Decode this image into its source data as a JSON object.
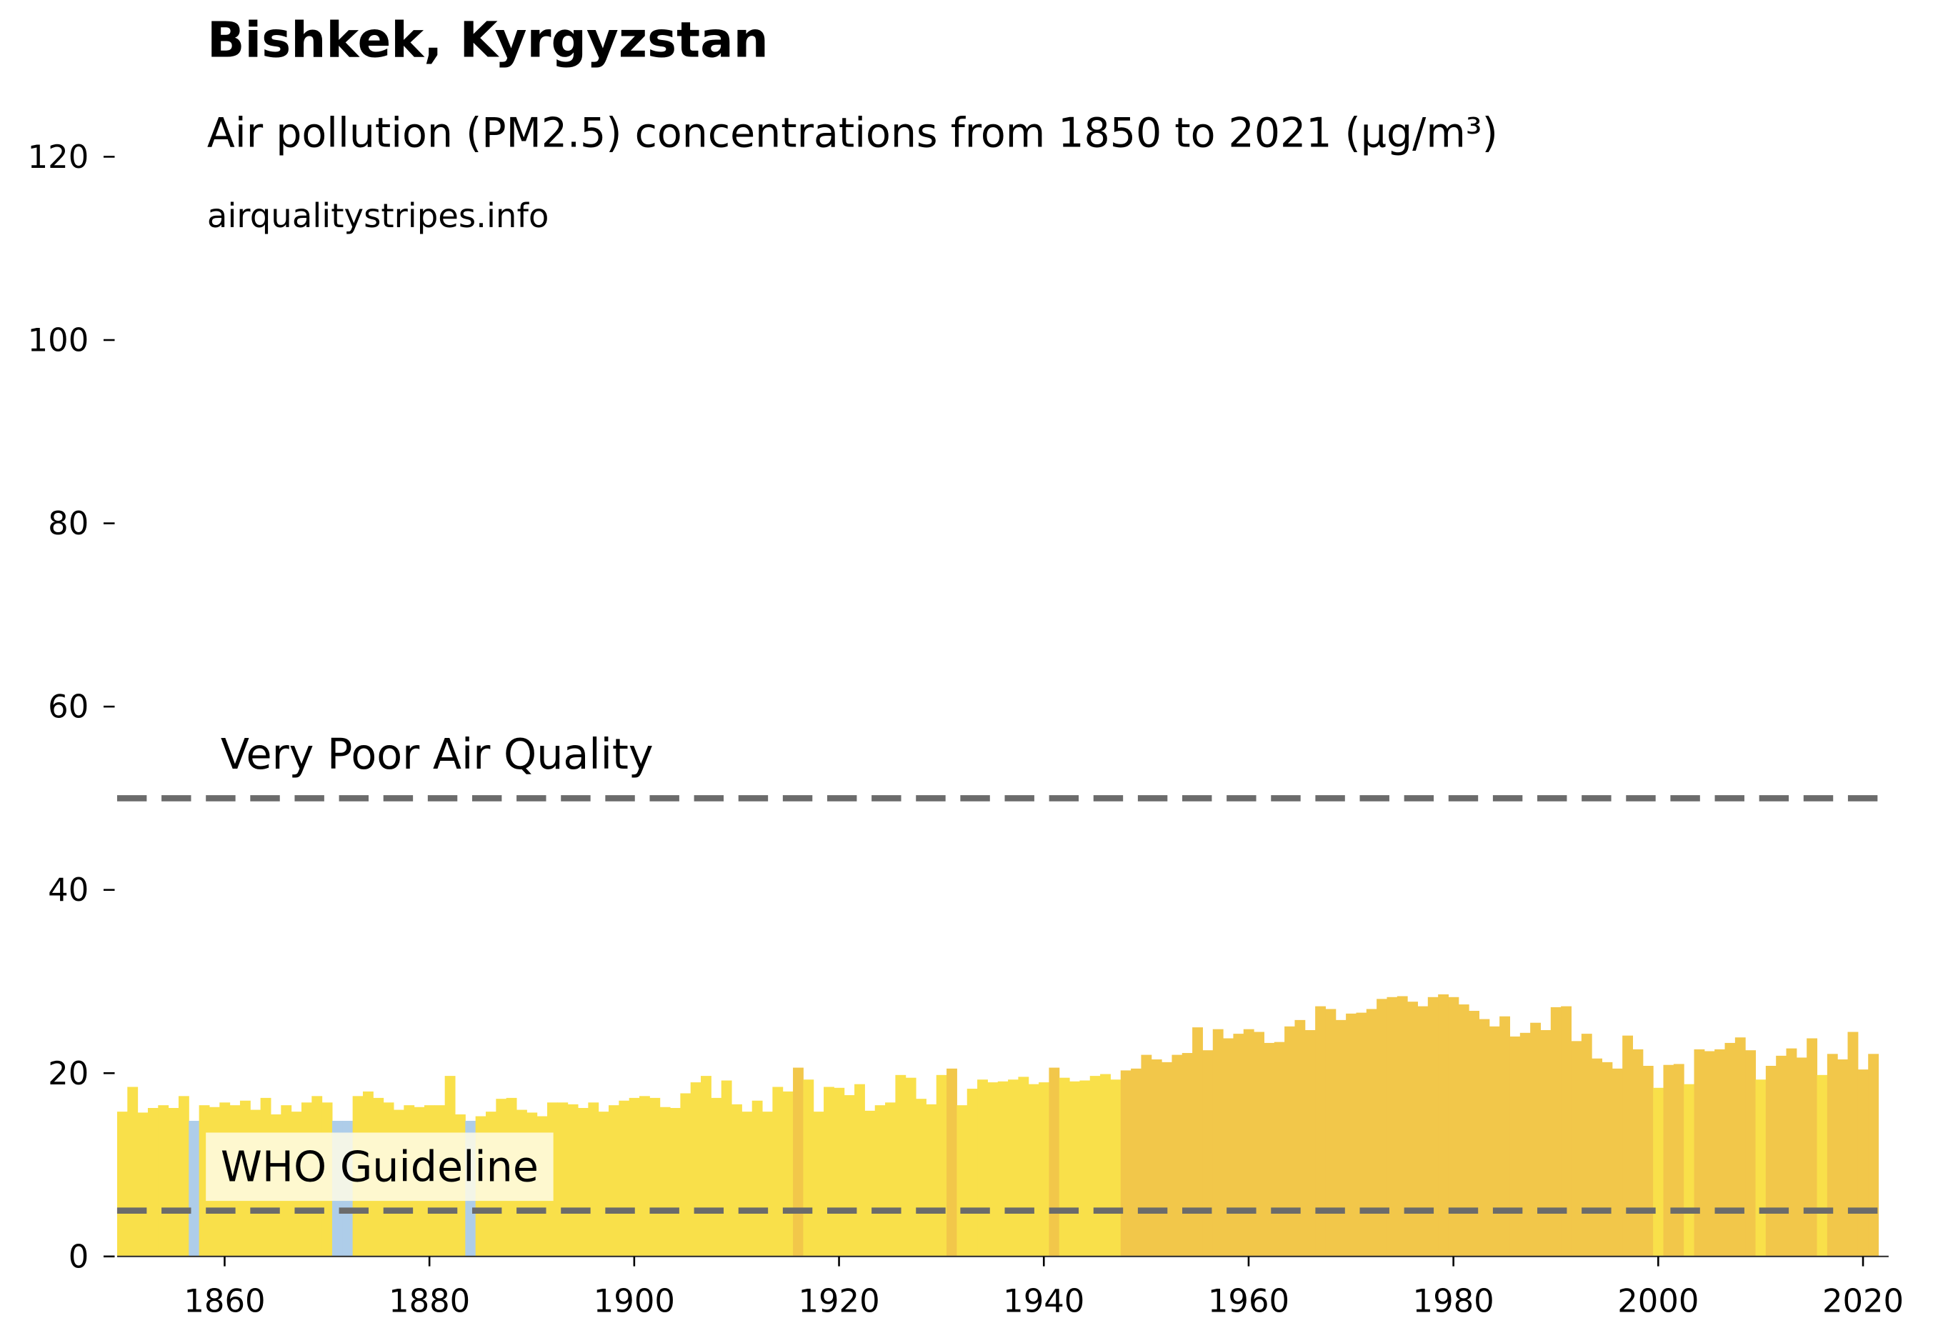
{
  "chart_data": {
    "type": "bar",
    "title": "Bishkek, Kyrgyzstan",
    "subtitle": "Air pollution (PM2.5) concentrations from 1850 to 2021 (µg/m³)",
    "source": "airqualitystripes.info",
    "x": [
      1850,
      1851,
      1852,
      1853,
      1854,
      1855,
      1856,
      1857,
      1858,
      1859,
      1860,
      1861,
      1862,
      1863,
      1864,
      1865,
      1866,
      1867,
      1868,
      1869,
      1870,
      1871,
      1872,
      1873,
      1874,
      1875,
      1876,
      1877,
      1878,
      1879,
      1880,
      1881,
      1882,
      1883,
      1884,
      1885,
      1886,
      1887,
      1888,
      1889,
      1890,
      1891,
      1892,
      1893,
      1894,
      1895,
      1896,
      1897,
      1898,
      1899,
      1900,
      1901,
      1902,
      1903,
      1904,
      1905,
      1906,
      1907,
      1908,
      1909,
      1910,
      1911,
      1912,
      1913,
      1914,
      1915,
      1916,
      1917,
      1918,
      1919,
      1920,
      1921,
      1922,
      1923,
      1924,
      1925,
      1926,
      1927,
      1928,
      1929,
      1930,
      1931,
      1932,
      1933,
      1934,
      1935,
      1936,
      1937,
      1938,
      1939,
      1940,
      1941,
      1942,
      1943,
      1944,
      1945,
      1946,
      1947,
      1948,
      1949,
      1950,
      1951,
      1952,
      1953,
      1954,
      1955,
      1956,
      1957,
      1958,
      1959,
      1960,
      1961,
      1962,
      1963,
      1964,
      1965,
      1966,
      1967,
      1968,
      1969,
      1970,
      1971,
      1972,
      1973,
      1974,
      1975,
      1976,
      1977,
      1978,
      1979,
      1980,
      1981,
      1982,
      1983,
      1984,
      1985,
      1986,
      1987,
      1988,
      1989,
      1990,
      1991,
      1992,
      1993,
      1994,
      1995,
      1996,
      1997,
      1998,
      1999,
      2000,
      2001,
      2002,
      2003,
      2004,
      2005,
      2006,
      2007,
      2008,
      2009,
      2010,
      2011,
      2012,
      2013,
      2014,
      2015,
      2016,
      2017,
      2018,
      2019,
      2020,
      2021
    ],
    "values": [
      15.8,
      18.5,
      15.7,
      16.2,
      16.5,
      16.2,
      17.5,
      14.8,
      16.5,
      16.3,
      16.8,
      16.5,
      17.0,
      16.0,
      17.3,
      15.5,
      16.5,
      15.8,
      16.8,
      17.5,
      16.8,
      14.8,
      14.8,
      17.5,
      18.0,
      17.3,
      16.8,
      16.0,
      16.5,
      16.3,
      16.5,
      16.5,
      19.7,
      15.5,
      14.8,
      15.3,
      15.8,
      17.2,
      17.3,
      16.0,
      15.7,
      15.3,
      16.8,
      16.8,
      16.6,
      16.2,
      16.8,
      15.8,
      16.5,
      17.0,
      17.3,
      17.5,
      17.3,
      16.3,
      16.2,
      17.8,
      19.0,
      19.7,
      17.3,
      19.2,
      16.6,
      15.8,
      17.0,
      15.8,
      18.5,
      18.0,
      20.6,
      19.3,
      15.8,
      18.5,
      18.4,
      17.6,
      18.8,
      15.9,
      16.5,
      16.8,
      19.8,
      19.5,
      17.2,
      16.6,
      19.8,
      20.5,
      16.5,
      18.3,
      19.3,
      19.0,
      19.1,
      19.3,
      19.6,
      18.8,
      19.0,
      20.6,
      19.5,
      19.1,
      19.2,
      19.7,
      19.9,
      19.3,
      20.3,
      20.5,
      22.0,
      21.5,
      21.2,
      22.0,
      22.2,
      25.0,
      22.5,
      24.8,
      23.8,
      24.3,
      24.8,
      24.5,
      23.3,
      23.4,
      25.1,
      25.8,
      24.7,
      27.3,
      27.0,
      25.8,
      26.5,
      26.6,
      27.0,
      28.1,
      28.3,
      28.4,
      27.8,
      27.3,
      28.3,
      28.6,
      28.3,
      27.5,
      26.8,
      25.9,
      25.1,
      26.2,
      24.0,
      24.4,
      25.5,
      24.7,
      27.2,
      27.3,
      23.5,
      24.3,
      21.6,
      21.2,
      20.5,
      24.1,
      22.6,
      20.8,
      18.4,
      20.9,
      21.0,
      18.8,
      22.6,
      22.4,
      22.6,
      23.3,
      23.9,
      22.5,
      19.3,
      20.8,
      21.9,
      22.7,
      21.7,
      23.8,
      19.8,
      22.1,
      21.5,
      24.5,
      20.4,
      22.1
    ],
    "colors": [
      "#f9e04a",
      "#f9e04a",
      "#f9e04a",
      "#f9e04a",
      "#f9e04a",
      "#f9e04a",
      "#f9e04a",
      "#aecde9",
      "#f9e04a",
      "#f9e04a",
      "#f9e04a",
      "#f9e04a",
      "#f9e04a",
      "#f9e04a",
      "#f9e04a",
      "#f9e04a",
      "#f9e04a",
      "#f9e04a",
      "#f9e04a",
      "#f9e04a",
      "#f9e04a",
      "#aecde9",
      "#aecde9",
      "#f9e04a",
      "#f9e04a",
      "#f9e04a",
      "#f9e04a",
      "#f9e04a",
      "#f9e04a",
      "#f9e04a",
      "#f9e04a",
      "#f9e04a",
      "#f9e04a",
      "#f9e04a",
      "#aecde9",
      "#f9e04a",
      "#f9e04a",
      "#f9e04a",
      "#f9e04a",
      "#f9e04a",
      "#f9e04a",
      "#f9e04a",
      "#f9e04a",
      "#f9e04a",
      "#f9e04a",
      "#f9e04a",
      "#f9e04a",
      "#f9e04a",
      "#f9e04a",
      "#f9e04a",
      "#f9e04a",
      "#f9e04a",
      "#f9e04a",
      "#f9e04a",
      "#f9e04a",
      "#f9e04a",
      "#f9e04a",
      "#f9e04a",
      "#f9e04a",
      "#f9e04a",
      "#f9e04a",
      "#f9e04a",
      "#f9e04a",
      "#f9e04a",
      "#f9e04a",
      "#f9e04a",
      "#f2c74a",
      "#f9e04a",
      "#f9e04a",
      "#f9e04a",
      "#f9e04a",
      "#f9e04a",
      "#f9e04a",
      "#f9e04a",
      "#f9e04a",
      "#f9e04a",
      "#f9e04a",
      "#f9e04a",
      "#f9e04a",
      "#f9e04a",
      "#f9e04a",
      "#f2c74a",
      "#f9e04a",
      "#f9e04a",
      "#f9e04a",
      "#f9e04a",
      "#f9e04a",
      "#f9e04a",
      "#f9e04a",
      "#f9e04a",
      "#f9e04a",
      "#f2c74a",
      "#f9e04a",
      "#f9e04a",
      "#f9e04a",
      "#f9e04a",
      "#f9e04a",
      "#f9e04a",
      "#f2c74a",
      "#f2c74a",
      "#f2c74a",
      "#f2c74a",
      "#f2c74a",
      "#f2c74a",
      "#f2c74a",
      "#f2c74a",
      "#f2c74a",
      "#f2c74a",
      "#f2c74a",
      "#f2c74a",
      "#f2c74a",
      "#f2c74a",
      "#f2c74a",
      "#f2c74a",
      "#f2c74a",
      "#f2c74a",
      "#f2c74a",
      "#f2c74a",
      "#f2c74a",
      "#f2c74a",
      "#f2c74a",
      "#f2c74a",
      "#f2c74a",
      "#f2c74a",
      "#f2c74a",
      "#f2c74a",
      "#f2c74a",
      "#f2c74a",
      "#f2c74a",
      "#f2c74a",
      "#f2c74a",
      "#f2c74a",
      "#f2c74a",
      "#f2c74a",
      "#f2c74a",
      "#f2c74a",
      "#f2c74a",
      "#f2c74a",
      "#f2c74a",
      "#f2c74a",
      "#f2c74a",
      "#f2c74a",
      "#f2c74a",
      "#f2c74a",
      "#f2c74a",
      "#f2c74a",
      "#f2c74a",
      "#f2c74a",
      "#f2c74a",
      "#f2c74a",
      "#f9e04a",
      "#f2c74a",
      "#f2c74a",
      "#f9e04a",
      "#f2c74a",
      "#f2c74a",
      "#f2c74a",
      "#f2c74a",
      "#f2c74a",
      "#f2c74a",
      "#f9e04a",
      "#f2c74a",
      "#f2c74a",
      "#f2c74a",
      "#f2c74a",
      "#f2c74a",
      "#f9e04a",
      "#f2c74a",
      "#f2c74a",
      "#f2c74a",
      "#f2c74a",
      "#f2c74a"
    ],
    "xlim": [
      1849.5,
      2022.5
    ],
    "xticks": [
      1860,
      1880,
      1900,
      1920,
      1940,
      1960,
      1980,
      2000,
      2020
    ],
    "ylim": [
      0,
      120
    ],
    "yticks": [
      0,
      20,
      40,
      60,
      80,
      100,
      120
    ],
    "reference_lines": [
      {
        "value": 50,
        "label": "Very Poor Air Quality",
        "color": "#6b6b6b"
      },
      {
        "value": 5,
        "label": "WHO Guideline",
        "color": "#6b6b6b"
      }
    ]
  }
}
